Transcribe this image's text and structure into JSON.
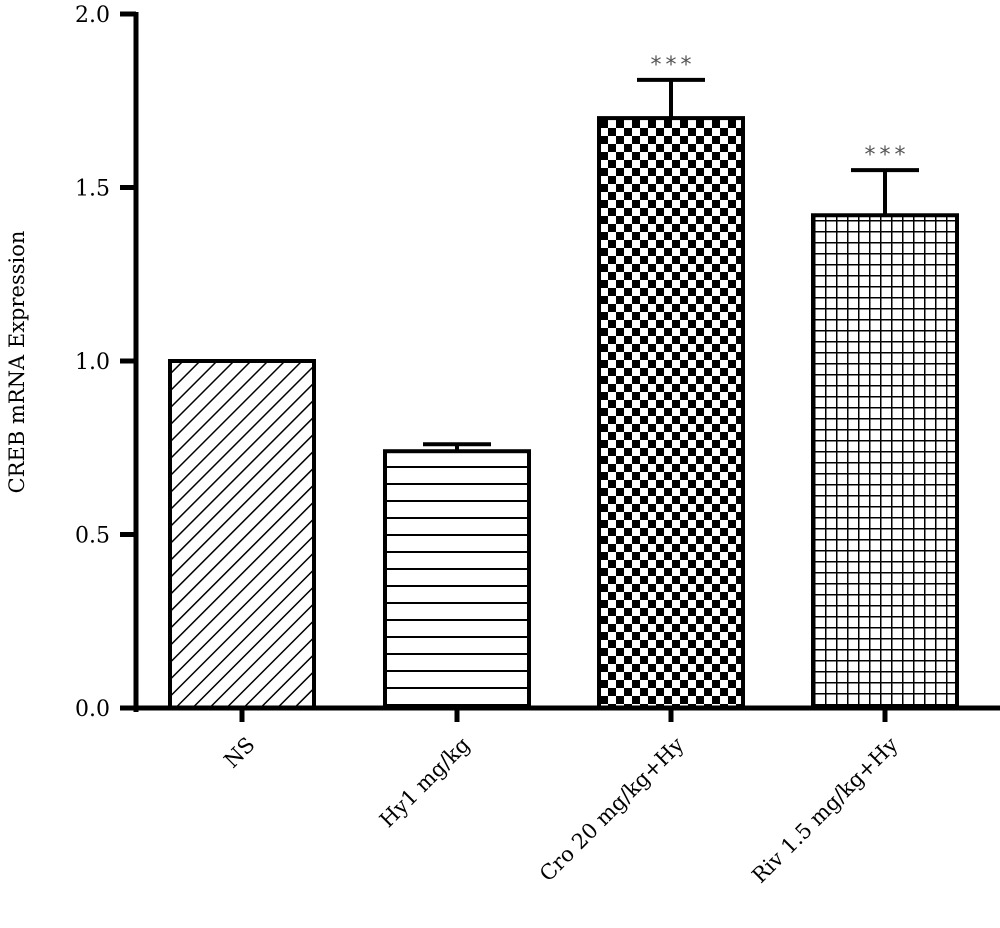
{
  "chart_data": {
    "type": "bar",
    "categories": [
      "NS",
      "Hy1 mg/kg",
      "Cro 20 mg/kg+Hy",
      "Riv 1.5 mg/kg+Hy"
    ],
    "values": [
      1.0,
      0.74,
      1.7,
      1.42
    ],
    "errors": [
      0.0,
      0.02,
      0.11,
      0.13
    ],
    "significance": [
      "",
      "",
      "***",
      "***"
    ],
    "patterns": [
      "diagonal-hatch",
      "horizontal-lines",
      "checkerboard",
      "grid"
    ],
    "title": "",
    "xlabel": "",
    "ylabel": "CREB mRNA Expression",
    "ylim": [
      0,
      2.0
    ],
    "yticks": [
      0.0,
      0.5,
      1.0,
      1.5,
      2.0
    ],
    "ytick_labels": [
      "0.0",
      "0.5",
      "1.0",
      "1.5",
      "2.0"
    ],
    "grid": false,
    "legend": "none"
  }
}
